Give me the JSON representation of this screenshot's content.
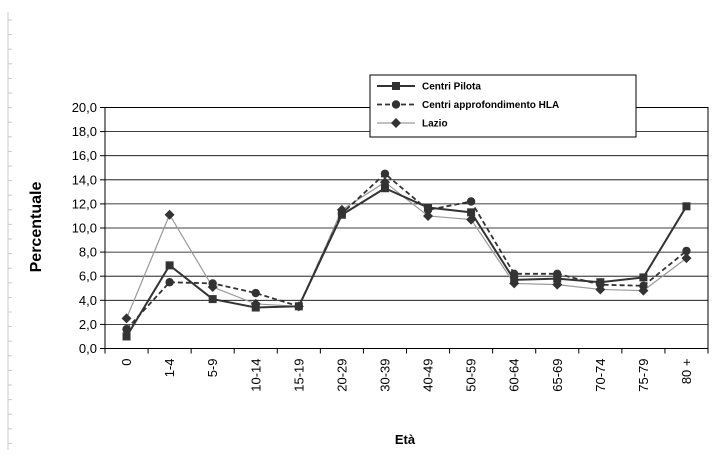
{
  "chart_data": {
    "type": "line",
    "categories": [
      "0",
      "1-4",
      "5-9",
      "10-14",
      "15-19",
      "20-29",
      "30-39",
      "40-49",
      "50-59",
      "60-64",
      "65-69",
      "70-74",
      "75-79",
      "80 +"
    ],
    "ylim": [
      0,
      20
    ],
    "ytick_labels": [
      "0,0",
      "2,0",
      "4,0",
      "6,0",
      "8,0",
      "10,0",
      "12,0",
      "14,0",
      "16,0",
      "18,0",
      "20,0"
    ],
    "ylabel": "Percentuale",
    "xlabel": "Età",
    "grid": "horizontal",
    "legend_position": "top-right",
    "series": [
      {
        "name": "Centri Pilota",
        "style": "solid",
        "marker": "square",
        "color": "#333333",
        "values": [
          1.0,
          6.9,
          4.1,
          3.4,
          3.5,
          11.1,
          13.3,
          11.7,
          11.3,
          5.7,
          5.8,
          5.5,
          5.9,
          11.8
        ]
      },
      {
        "name": "Centri approfondimento HLA",
        "style": "dashed",
        "marker": "circle",
        "color": "#333333",
        "values": [
          1.6,
          5.5,
          5.4,
          4.6,
          3.5,
          11.2,
          14.5,
          11.5,
          12.2,
          6.2,
          6.2,
          5.3,
          5.2,
          8.1
        ]
      },
      {
        "name": "Lazio",
        "style": "thin",
        "marker": "diamond",
        "color": "#999999",
        "values": [
          2.5,
          11.1,
          5.1,
          3.7,
          3.5,
          11.5,
          13.8,
          11.0,
          10.7,
          5.4,
          5.3,
          4.9,
          4.8,
          7.5
        ]
      }
    ]
  }
}
